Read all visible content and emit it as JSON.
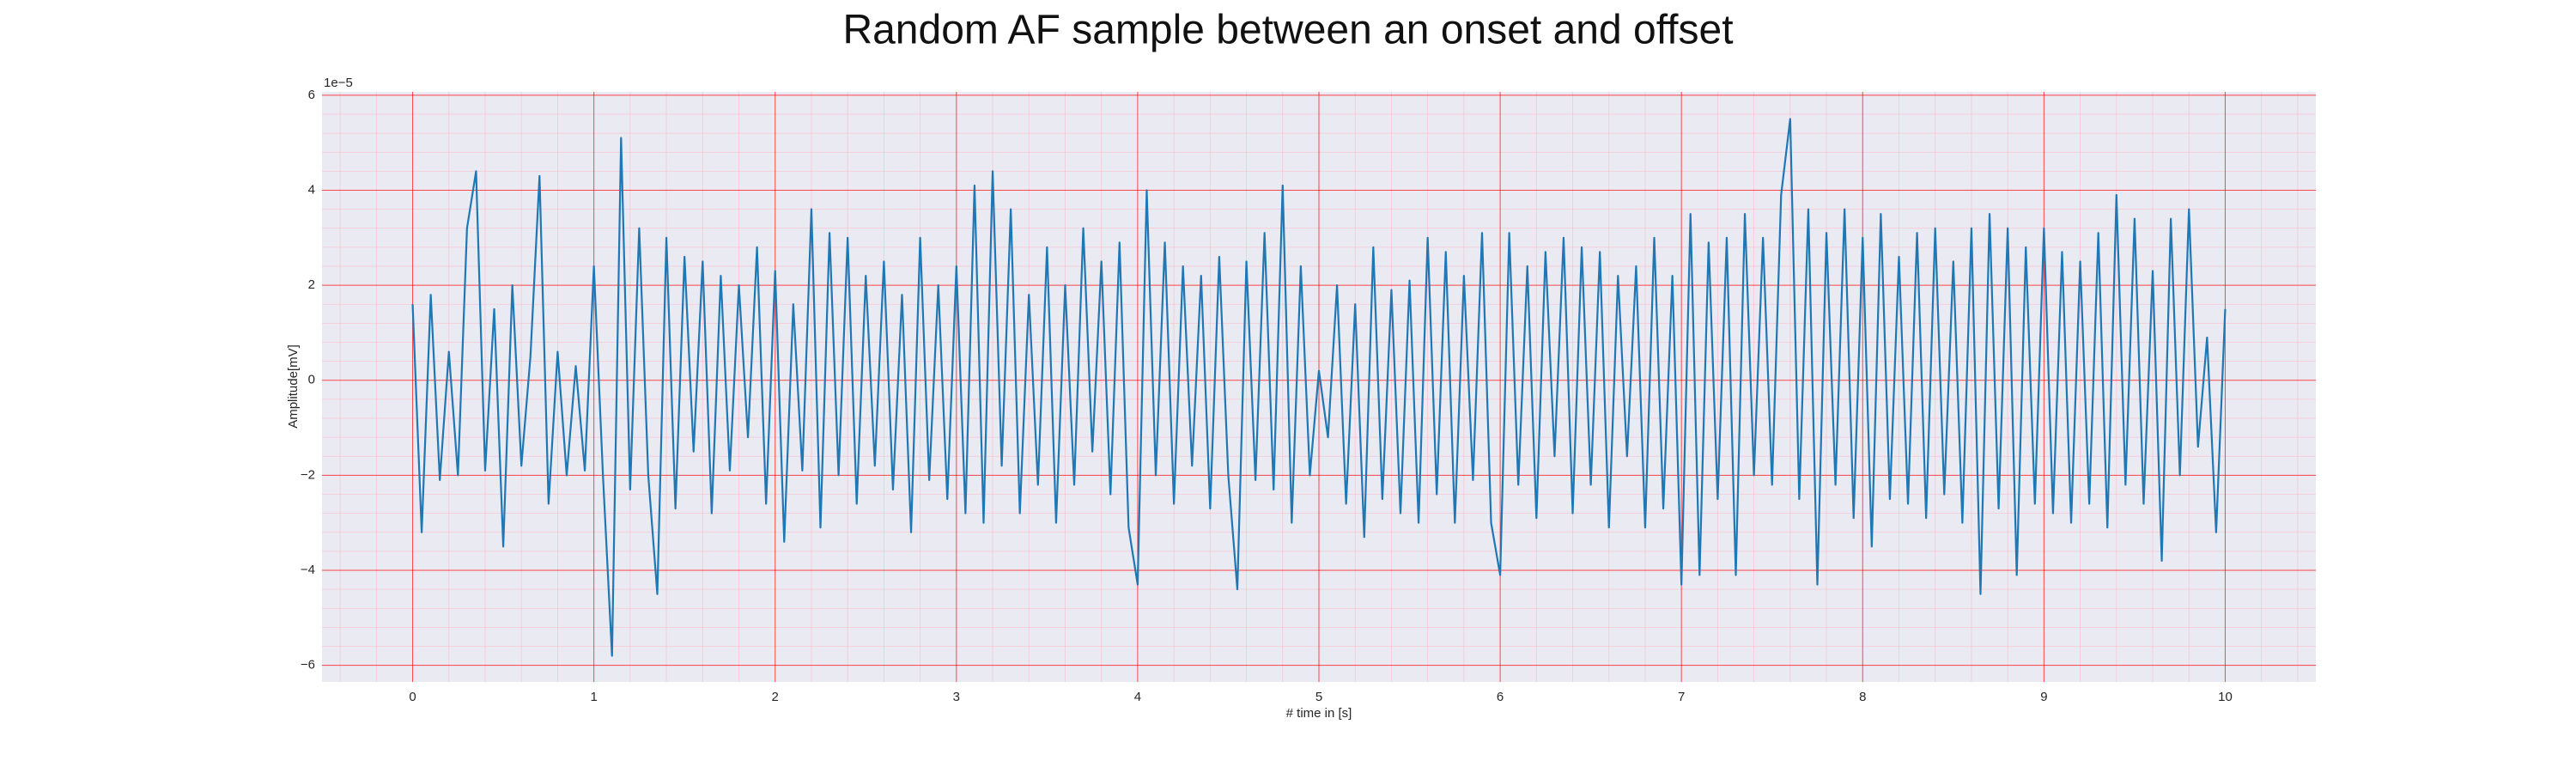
{
  "chart_data": {
    "type": "line",
    "title": "Random AF sample between an onset and offset",
    "x_label": "# time in [s]",
    "y_label": "Amplitude[mV]",
    "y_offset_label": "1e−5",
    "color": "#1f77b4",
    "grid": true,
    "grid_color": "#ff0000",
    "minor_grid_color": "#ffb0c0",
    "xlim": [
      -0.5,
      10.5
    ],
    "ylim": [
      -6.35,
      6.07
    ],
    "xticks": [
      0,
      1,
      2,
      3,
      4,
      5,
      6,
      7,
      8,
      9,
      10
    ],
    "yticks": [
      {
        "value": -6,
        "label": "−6"
      },
      {
        "value": -4,
        "label": "−4"
      },
      {
        "value": -2,
        "label": "−2"
      },
      0,
      2,
      4,
      6
    ],
    "xminorticks": [
      -0.4,
      -0.2,
      0.2,
      0.4,
      0.6,
      0.8,
      1.2,
      1.4,
      1.6,
      1.8,
      2.2,
      2.4,
      2.6,
      2.8,
      3.2,
      3.4,
      3.6,
      3.8,
      4.2,
      4.4,
      4.6,
      4.8,
      5.2,
      5.4,
      5.6,
      5.8,
      6.2,
      6.4,
      6.6,
      6.8,
      7.2,
      7.4,
      7.6,
      7.8,
      8.2,
      8.4,
      8.6,
      8.8,
      9.2,
      9.4,
      9.6,
      9.8,
      10.2,
      10.4
    ],
    "yminorticks": [
      -5.6,
      -5.2,
      -4.8,
      -4.4,
      -3.6,
      -3.2,
      -2.8,
      -2.4,
      -1.6,
      -1.2,
      -0.8,
      -0.4,
      0.4,
      0.8,
      1.2,
      1.6,
      2.4,
      2.8,
      3.2,
      3.6,
      4.4,
      4.8,
      5.2,
      5.6
    ],
    "x": [
      0,
      0.05,
      0.1,
      0.15,
      0.2,
      0.25,
      0.3,
      0.35,
      0.4,
      0.45,
      0.5,
      0.55,
      0.6,
      0.65,
      0.7,
      0.75,
      0.8,
      0.85,
      0.9,
      0.95,
      1,
      1.05,
      1.1,
      1.15,
      1.2,
      1.25,
      1.3,
      1.35,
      1.4,
      1.45,
      1.5,
      1.55,
      1.6,
      1.65,
      1.7,
      1.75,
      1.8,
      1.85,
      1.9,
      1.95,
      2,
      2.05,
      2.1,
      2.15,
      2.2,
      2.25,
      2.3,
      2.35,
      2.4,
      2.45,
      2.5,
      2.55,
      2.6,
      2.65,
      2.7,
      2.75,
      2.8,
      2.85,
      2.9,
      2.95,
      3,
      3.05,
      3.1,
      3.15,
      3.2,
      3.25,
      3.3,
      3.35,
      3.4,
      3.45,
      3.5,
      3.55,
      3.6,
      3.65,
      3.7,
      3.75,
      3.8,
      3.85,
      3.9,
      3.95,
      4,
      4.05,
      4.1,
      4.15,
      4.2,
      4.25,
      4.3,
      4.35,
      4.4,
      4.45,
      4.5,
      4.55,
      4.6,
      4.65,
      4.7,
      4.75,
      4.8,
      4.85,
      4.9,
      4.95,
      5,
      5.05,
      5.1,
      5.15,
      5.2,
      5.25,
      5.3,
      5.35,
      5.4,
      5.45,
      5.5,
      5.55,
      5.6,
      5.65,
      5.7,
      5.75,
      5.8,
      5.85,
      5.9,
      5.95,
      6,
      6.05,
      6.1,
      6.15,
      6.2,
      6.25,
      6.3,
      6.35,
      6.4,
      6.45,
      6.5,
      6.55,
      6.6,
      6.65,
      6.7,
      6.75,
      6.8,
      6.85,
      6.9,
      6.95,
      7,
      7.05,
      7.1,
      7.15,
      7.2,
      7.25,
      7.3,
      7.35,
      7.4,
      7.45,
      7.5,
      7.55,
      7.6,
      7.65,
      7.7,
      7.75,
      7.8,
      7.85,
      7.9,
      7.95,
      8,
      8.05,
      8.1,
      8.15,
      8.2,
      8.25,
      8.3,
      8.35,
      8.4,
      8.45,
      8.5,
      8.55,
      8.6,
      8.65,
      8.7,
      8.75,
      8.8,
      8.85,
      8.9,
      8.95,
      9,
      9.05,
      9.1,
      9.15,
      9.2,
      9.25,
      9.3,
      9.35,
      9.4,
      9.45,
      9.5,
      9.55,
      9.6,
      9.65,
      9.7,
      9.75,
      9.8,
      9.85,
      9.9,
      9.95,
      10
    ],
    "values": [
      1.6,
      -3.2,
      1.8,
      -2.1,
      0.6,
      -2.0,
      3.2,
      4.4,
      -1.9,
      1.5,
      -3.5,
      2.0,
      -1.8,
      0.5,
      4.3,
      -2.6,
      0.6,
      -2.0,
      0.3,
      -1.9,
      2.4,
      -2.0,
      -5.8,
      5.1,
      -2.3,
      3.2,
      -2.0,
      -4.5,
      3.0,
      -2.7,
      2.6,
      -1.5,
      2.5,
      -2.8,
      2.2,
      -1.9,
      2.0,
      -1.2,
      2.8,
      -2.6,
      2.3,
      -3.4,
      1.6,
      -1.9,
      3.6,
      -3.1,
      3.1,
      -2.0,
      3.0,
      -2.6,
      2.2,
      -1.8,
      2.5,
      -2.3,
      1.8,
      -3.2,
      3.0,
      -2.1,
      2.0,
      -2.5,
      2.4,
      -2.8,
      4.1,
      -3.0,
      4.4,
      -1.8,
      3.6,
      -2.8,
      1.8,
      -2.2,
      2.8,
      -3.0,
      2.0,
      -2.2,
      3.2,
      -1.5,
      2.5,
      -2.4,
      2.9,
      -3.1,
      -4.3,
      4.0,
      -2.0,
      2.9,
      -2.6,
      2.4,
      -1.8,
      2.2,
      -2.7,
      2.6,
      -2.0,
      -4.4,
      2.5,
      -2.1,
      3.1,
      -2.3,
      4.1,
      -3.0,
      2.4,
      -2.0,
      0.2,
      -1.2,
      2.0,
      -2.6,
      1.6,
      -3.3,
      2.8,
      -2.5,
      1.9,
      -2.8,
      2.1,
      -3.0,
      3.0,
      -2.4,
      2.7,
      -3.0,
      2.2,
      -2.1,
      3.1,
      -3.0,
      -4.1,
      3.1,
      -2.2,
      2.4,
      -2.9,
      2.7,
      -1.6,
      3.0,
      -2.8,
      2.8,
      -2.2,
      2.7,
      -3.1,
      2.2,
      -1.6,
      2.4,
      -3.1,
      3.0,
      -2.7,
      2.2,
      -4.3,
      3.5,
      -4.1,
      2.9,
      -2.5,
      3.0,
      -4.1,
      3.5,
      -2.0,
      3.0,
      -2.2,
      3.9,
      5.5,
      -2.5,
      3.6,
      -4.3,
      3.1,
      -2.2,
      3.6,
      -2.9,
      3.0,
      -3.5,
      3.5,
      -2.5,
      2.6,
      -2.6,
      3.1,
      -2.9,
      3.2,
      -2.4,
      2.5,
      -3.0,
      3.2,
      -4.5,
      3.5,
      -2.7,
      3.2,
      -4.1,
      2.8,
      -2.6,
      3.2,
      -2.8,
      2.7,
      -3.0,
      2.5,
      -2.6,
      3.1,
      -3.1,
      3.9,
      -2.2,
      3.4,
      -2.6,
      2.3,
      -3.8,
      3.4,
      -2.0,
      3.6,
      -1.4,
      0.9,
      -3.2,
      1.5
    ]
  }
}
